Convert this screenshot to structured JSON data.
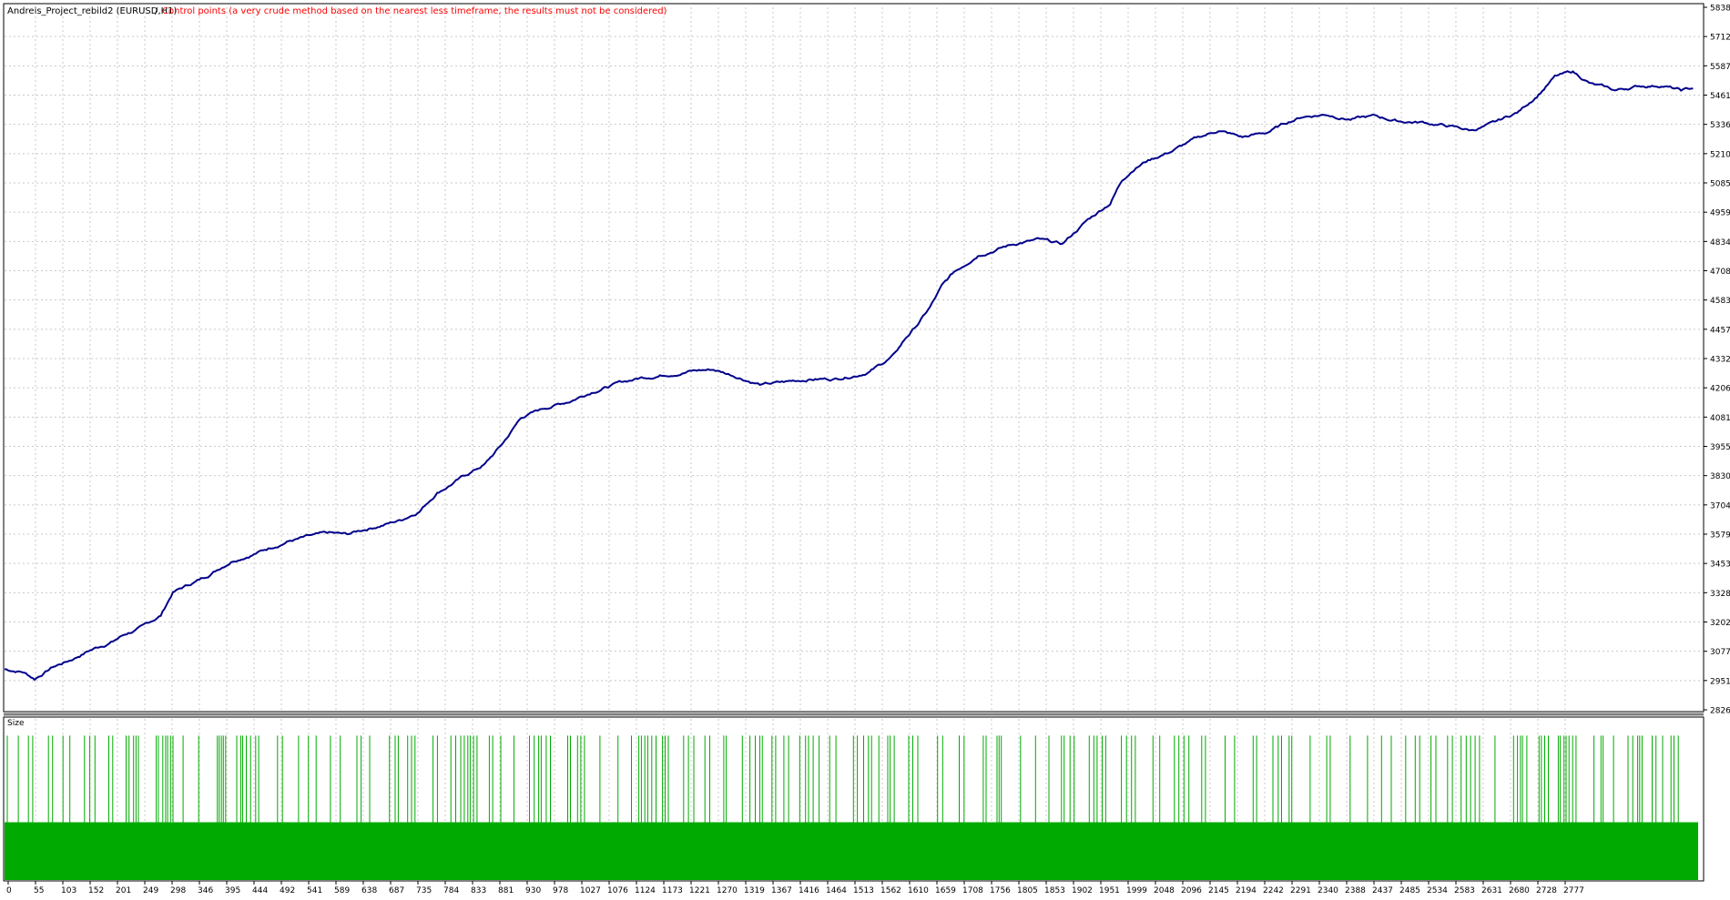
{
  "header": {
    "title": "Andreis_Project_rebild2 (EURUSD,H1)",
    "separator": "/",
    "warning": "Control points (a very crude method based on the nearest less timeframe, the results must not be considered)"
  },
  "subpanel": {
    "label": "Size"
  },
  "colors": {
    "background": "#ffffff",
    "grid": "#c8c8c8",
    "balance_line": "#00008b",
    "size_bars": "#00aa00",
    "warning_text": "#ff0000",
    "axis": "#000000"
  },
  "chart_data": [
    {
      "type": "line",
      "series": [
        {
          "x": [
            0,
            30,
            50,
            80,
            110,
            140,
            160,
            180,
            200,
            230,
            260,
            280,
            330,
            380,
            430,
            470,
            500,
            540,
            570,
            600,
            630,
            660,
            690,
            720,
            740,
            760,
            780,
            800,
            830,
            860,
            900,
            940,
            980,
            1020,
            1060,
            1100,
            1140,
            1180,
            1220,
            1260,
            1300,
            1340,
            1380,
            1420,
            1440,
            1460,
            1480,
            1500,
            1520,
            1540,
            1560,
            1580,
            1600,
            1620,
            1660,
            1690,
            1720,
            1760,
            1800,
            1840,
            1860,
            1880,
            1900,
            1940,
            1980,
            2020,
            2060,
            2100,
            2140,
            2160,
            2200,
            2240,
            2280,
            2320,
            2360,
            2400,
            2440,
            2480,
            2520,
            2550,
            2580,
            2610,
            2640,
            2680,
            2720,
            2760,
            2790,
            2810
          ],
          "values": [
            3000,
            2990,
            2960,
            3010,
            3040,
            3080,
            3100,
            3120,
            3150,
            3180,
            3230,
            3330,
            3390,
            3470,
            3510,
            3550,
            3565,
            3580,
            3575,
            3600,
            3620,
            3640,
            3680,
            3760,
            3790,
            3820,
            3850,
            3880,
            3970,
            4080,
            4120,
            4150,
            4195,
            4225,
            4250,
            4265,
            4280,
            4285,
            4255,
            4220,
            4230,
            4245,
            4245,
            4265,
            4280,
            4310,
            4345,
            4420,
            4480,
            4550,
            4640,
            4700,
            4740,
            4780,
            4810,
            4830,
            4840,
            4820,
            4920,
            5000,
            5100,
            5150,
            5180,
            5220,
            5270,
            5310,
            5280,
            5300,
            5350,
            5370,
            5380,
            5360,
            5370,
            5350,
            5345,
            5330,
            5310,
            5340,
            5390,
            5460,
            5540,
            5560,
            5510,
            5480,
            5500,
            5505,
            5480,
            5490
          ]
        }
      ],
      "xticks": [
        "0",
        "55",
        "103",
        "152",
        "201",
        "249",
        "298",
        "346",
        "395",
        "444",
        "492",
        "541",
        "589",
        "638",
        "687",
        "735",
        "784",
        "833",
        "881",
        "930",
        "978",
        "1027",
        "1076",
        "1124",
        "1173",
        "1221",
        "1270",
        "1319",
        "1367",
        "1416",
        "1464",
        "1513",
        "1562",
        "1610",
        "1659",
        "1708",
        "1756",
        "1805",
        "1853",
        "1902",
        "1951",
        "1999",
        "2048",
        "2096",
        "2145",
        "2194",
        "2242",
        "2291",
        "2340",
        "2388",
        "2437",
        "2485",
        "2534",
        "2583",
        "2631",
        "2680",
        "2728",
        "2777"
      ],
      "yticks": [
        "5838",
        "5712",
        "5587",
        "5461",
        "5336",
        "5210",
        "5085",
        "4959",
        "4834",
        "4708",
        "4583",
        "4457",
        "4332",
        "4206",
        "4081",
        "3955",
        "3830",
        "3704",
        "3579",
        "3453",
        "3328",
        "3202",
        "3077",
        "2951",
        "2826"
      ],
      "ylim": [
        2826,
        5838
      ],
      "xlim": [
        0,
        2826
      ],
      "grid": true
    },
    {
      "type": "bar",
      "name": "Size",
      "baseline_level": 0.38,
      "spike_level": 0.95,
      "xlim": [
        0,
        2826
      ]
    }
  ]
}
